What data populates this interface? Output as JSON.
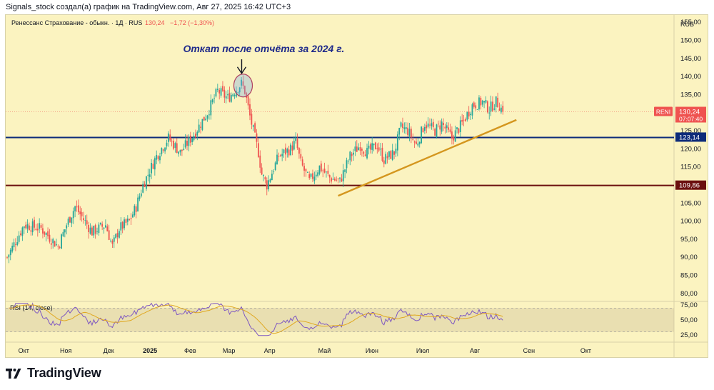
{
  "header": {
    "text": "Signals_stock создал(а) график на TradingView.com, Авг 27, 2025 16:42 UTC+3"
  },
  "brand": {
    "text": "TradingView"
  },
  "chart_data": [
    {
      "type": "candlestick",
      "legend": {
        "symbol": "Ренессанс Страхование - обыкн. · 1Д · RUS",
        "last": "130,24",
        "change": "−1,72 (−1,30%)"
      },
      "currency": "RUB",
      "annotation": "Откат после отчёта за 2024 г.",
      "ylim": [
        78,
        157
      ],
      "y_ticks": [
        80,
        85,
        90,
        95,
        100,
        105,
        110,
        115,
        120,
        125,
        130,
        135,
        140,
        145,
        150,
        155
      ],
      "y_tick_labels": [
        "80,00",
        "85,00",
        "90,00",
        "95,00",
        "100,00",
        "105,00",
        "110,00",
        "115,00",
        "120,00",
        "125,00",
        "130,00",
        "135,00",
        "140,00",
        "145,00",
        "150,00",
        "155,00"
      ],
      "x_labels": [
        "Окт",
        "Ноя",
        "Дек",
        "2025",
        "Фев",
        "Мар",
        "Апр",
        "Май",
        "Июн",
        "Июл",
        "Авг",
        "Сен",
        "Окт"
      ],
      "price_tags": [
        {
          "label": "RENI",
          "value": "130,24",
          "sub": "07:07:40",
          "y": 130.24,
          "color": "#ef5350"
        },
        {
          "label": "",
          "value": "123,14",
          "sub": "",
          "y": 123.14,
          "color": "#0d2b7a"
        },
        {
          "label": "",
          "value": "109,86",
          "sub": "",
          "y": 109.86,
          "color": "#6b0f0f"
        }
      ],
      "horizontal_levels": [
        {
          "value": 123.14,
          "color": "#0d2b7a"
        },
        {
          "value": 109.86,
          "color": "#6b0f0f"
        }
      ],
      "trendline": {
        "from_day": 195,
        "from": 107.0,
        "to_day": 300,
        "to": 128.0,
        "color": "#d4961e"
      },
      "highlight": {
        "day": 139,
        "price": 137.5
      },
      "anchors": [
        [
          0,
          90
        ],
        [
          10,
          99
        ],
        [
          20,
          98
        ],
        [
          30,
          93
        ],
        [
          35,
          99
        ],
        [
          40,
          104
        ],
        [
          50,
          97
        ],
        [
          58,
          99
        ],
        [
          62,
          93
        ],
        [
          66,
          98
        ],
        [
          72,
          100
        ],
        [
          76,
          104
        ],
        [
          80,
          110
        ],
        [
          88,
          118
        ],
        [
          95,
          123
        ],
        [
          102,
          119
        ],
        [
          110,
          124
        ],
        [
          118,
          130
        ],
        [
          124,
          136
        ],
        [
          130,
          134
        ],
        [
          138,
          138
        ],
        [
          140,
          136
        ],
        [
          143,
          129
        ],
        [
          148,
          119
        ],
        [
          150,
          113
        ],
        [
          153,
          110
        ],
        [
          160,
          118
        ],
        [
          167,
          120
        ],
        [
          170,
          122
        ],
        [
          173,
          116
        ],
        [
          178,
          111
        ],
        [
          184,
          115
        ],
        [
          190,
          112
        ],
        [
          196,
          111
        ],
        [
          202,
          118
        ],
        [
          208,
          121
        ],
        [
          212,
          119
        ],
        [
          218,
          121
        ],
        [
          222,
          117
        ],
        [
          228,
          119
        ],
        [
          232,
          126
        ],
        [
          236,
          125
        ],
        [
          241,
          121
        ],
        [
          246,
          127
        ],
        [
          252,
          125
        ],
        [
          256,
          127
        ],
        [
          262,
          123
        ],
        [
          268,
          127
        ],
        [
          274,
          132
        ],
        [
          280,
          133
        ],
        [
          284,
          131
        ],
        [
          288,
          133
        ],
        [
          290,
          132
        ],
        [
          292,
          130.24
        ]
      ],
      "rsi": {
        "label": "RSI (14, close)",
        "ylim": [
          20,
          80
        ],
        "y_ticks": [
          25,
          50,
          75
        ],
        "y_tick_labels": [
          "25,00",
          "50,00",
          "75,00"
        ],
        "band": [
          30,
          70
        ],
        "color": "#7e57c2",
        "ma_color": "#e0a820"
      }
    }
  ]
}
